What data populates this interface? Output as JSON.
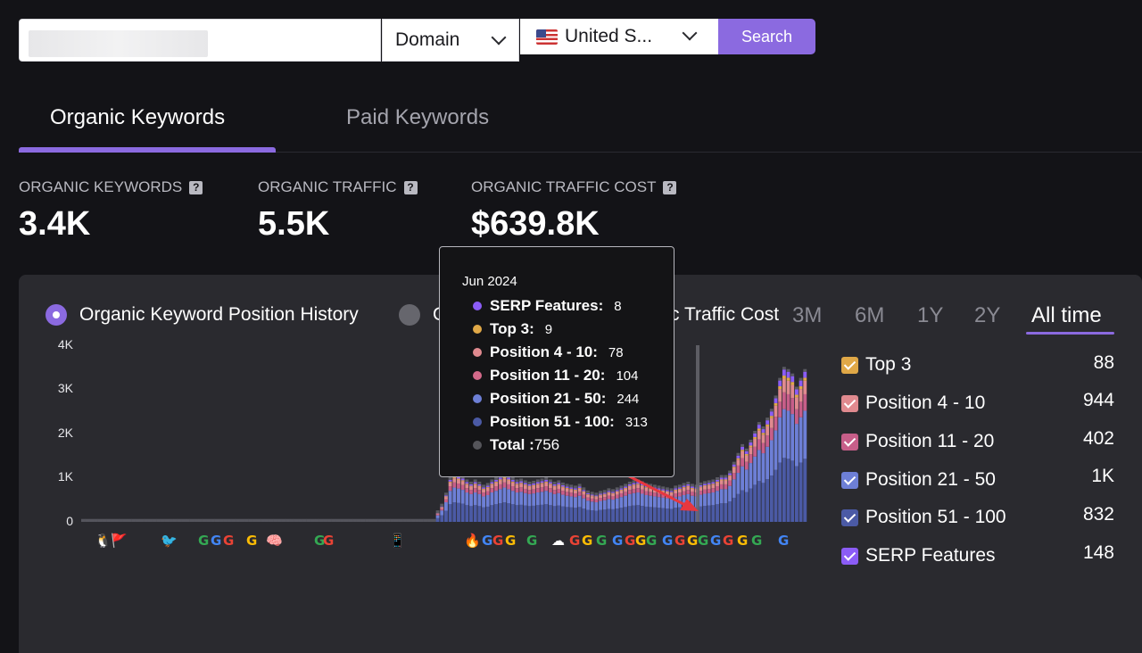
{
  "search": {
    "domain_option": "Domain",
    "country": "United S...",
    "button_label": "Search"
  },
  "tabs": [
    {
      "label": "Organic Keywords"
    },
    {
      "label": "Paid Keywords"
    }
  ],
  "metrics": [
    {
      "label": "ORGANIC KEYWORDS",
      "value": "3.4K",
      "help": "?"
    },
    {
      "label": "ORGANIC TRAFFIC",
      "value": "5.5K",
      "help": "?"
    },
    {
      "label": "ORGANIC TRAFFIC COST",
      "value": "$639.8K",
      "help": "?"
    }
  ],
  "chart_modes": {
    "active": "Organic Keyword Position History",
    "inactive_partial_left": "O",
    "inactive_partial_right": "c Traffic Cost"
  },
  "time_ranges": [
    "3M",
    "6M",
    "1Y",
    "2Y",
    "All time"
  ],
  "active_range": "All time",
  "legend": [
    {
      "label": "Top 3",
      "value": "88",
      "color": "#e0a847"
    },
    {
      "label": "Position 4  -  10",
      "value": "944",
      "color": "#e08a8f"
    },
    {
      "label": "Position 11  -  20",
      "value": "402",
      "color": "#c75e89"
    },
    {
      "label": "Position 21  -  50",
      "value": "1K",
      "color": "#6d7fd6"
    },
    {
      "label": "Position 51  -  100",
      "value": "832",
      "color": "#4b5aa5"
    },
    {
      "label": "SERP Features",
      "value": "148",
      "color": "#8b5cf6"
    }
  ],
  "tooltip": {
    "date": "Jun 2024",
    "rows": [
      {
        "label": "SERP Features:",
        "value": "8",
        "color": "#8b5cf6"
      },
      {
        "label": "Top 3:",
        "value": "9",
        "color": "#e0a847"
      },
      {
        "label": "Position 4 - 10:",
        "value": "78",
        "color": "#e08a8f"
      },
      {
        "label": "Position 11 - 20:",
        "value": "104",
        "color": "#d46a8a"
      },
      {
        "label": "Position 21 - 50:",
        "value": "244",
        "color": "#6d7fd6"
      },
      {
        "label": "Position 51 - 100:",
        "value": "313",
        "color": "#4b5aa5"
      }
    ],
    "total_label": "Total :",
    "total_value": "756",
    "total_color": "#55555a"
  },
  "chart_data": {
    "type": "bar",
    "stacked": true,
    "y_ticks": [
      "4K",
      "3K",
      "2K",
      "1K",
      "0"
    ],
    "ylim": [
      0,
      4000
    ],
    "grid": false,
    "series": [
      {
        "name": "Position 51 - 100",
        "color": "#4b5aa5"
      },
      {
        "name": "Position 21 - 50",
        "color": "#6d7fd6"
      },
      {
        "name": "Position 11 - 20",
        "color": "#c75e89"
      },
      {
        "name": "Position 4 - 10",
        "color": "#e08a8f"
      },
      {
        "name": "Top 3",
        "color": "#e0a847"
      },
      {
        "name": "SERP Features",
        "color": "#8b5cf6"
      }
    ],
    "totals": [
      110,
      110,
      110,
      110,
      110,
      110,
      110,
      110,
      110,
      110,
      110,
      110,
      110,
      110,
      110,
      110,
      110,
      110,
      110,
      110,
      110,
      110,
      110,
      110,
      110,
      110,
      110,
      110,
      110,
      110,
      110,
      110,
      110,
      110,
      110,
      110,
      110,
      110,
      110,
      110,
      110,
      110,
      110,
      110,
      110,
      110,
      110,
      110,
      110,
      110,
      110,
      110,
      110,
      110,
      110,
      110,
      110,
      110,
      110,
      110,
      110,
      110,
      110,
      110,
      110,
      110,
      110,
      110,
      110,
      110,
      110,
      110,
      110,
      110,
      110,
      110,
      110,
      110,
      110,
      110,
      110,
      110,
      110,
      110,
      110,
      200,
      350,
      600,
      950,
      1050,
      1020,
      980,
      900,
      850,
      900,
      850,
      780,
      820,
      900,
      950,
      1000,
      1050,
      1000,
      950,
      900,
      920,
      880,
      850,
      870,
      900,
      920,
      950,
      900,
      850,
      880,
      830,
      800,
      780,
      760,
      800,
      720,
      650,
      620,
      600,
      640,
      660,
      700,
      680,
      720,
      760,
      800,
      850,
      880,
      900,
      860,
      820,
      800,
      780,
      760,
      740,
      720,
      700,
      760,
      780,
      820,
      850,
      800,
      780,
      830,
      860,
      880,
      900,
      950,
      1000,
      1000,
      1100,
      1300,
      1500,
      1700,
      1600,
      1800,
      2000,
      2200,
      2100,
      2300,
      2500,
      2800,
      3200,
      3450,
      3400,
      3300,
      3000,
      3200,
      3400
    ],
    "highlight_label": "Jun 2024"
  },
  "serp_icons": [
    "🐧",
    "🚩",
    "🐦",
    "G",
    "G",
    "G",
    "G",
    "G",
    "🧠",
    "G",
    "📱",
    "🔥",
    "G",
    "G",
    "G",
    "G",
    "☁",
    "G",
    "G",
    "G",
    "G",
    "G",
    "G",
    "G",
    "G",
    "G",
    "G",
    "G",
    "G",
    "G",
    "G",
    "G",
    "G"
  ]
}
